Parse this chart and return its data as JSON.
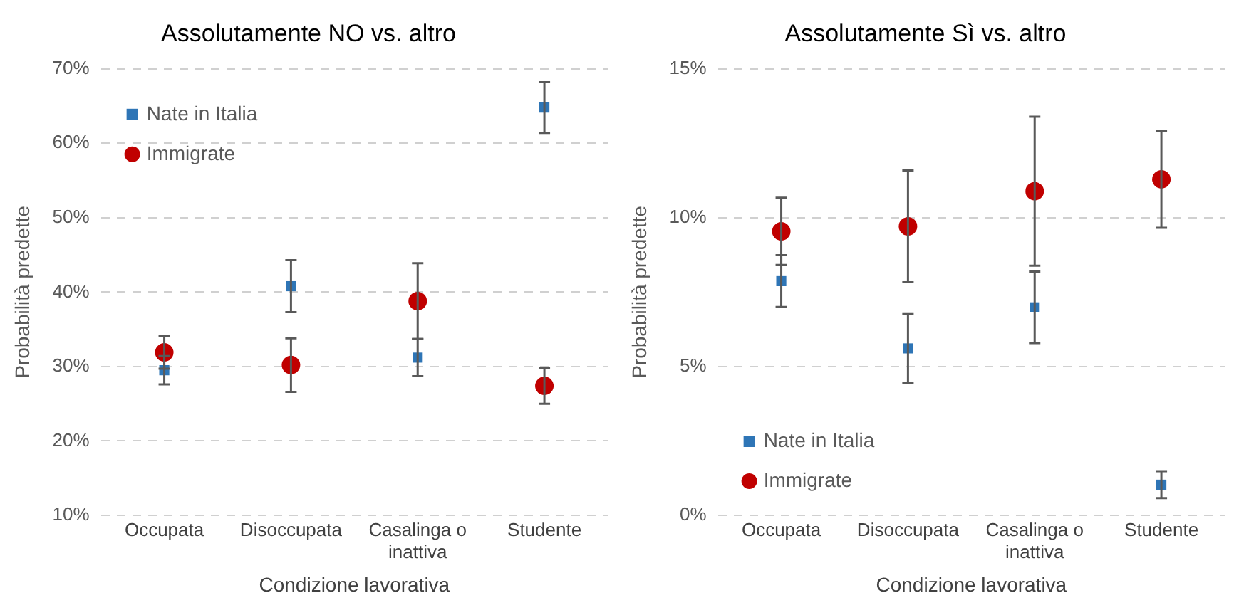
{
  "chart_data": [
    {
      "type": "scatter",
      "title": "Assolutamente NO vs. altro",
      "xlabel": "Condizione lavorativa",
      "ylabel": "Probabilità predette",
      "categories": [
        "Occupata",
        "Disoccupata",
        "Casalinga o inattiva",
        "Studente"
      ],
      "ylim": [
        10,
        70
      ],
      "yticks": [
        {
          "value": 10,
          "label": "10%"
        },
        {
          "value": 20,
          "label": "20%"
        },
        {
          "value": 30,
          "label": "30%"
        },
        {
          "value": 40,
          "label": "40%"
        },
        {
          "value": 50,
          "label": "50%"
        },
        {
          "value": 60,
          "label": "60%"
        },
        {
          "value": 70,
          "label": "70%"
        }
      ],
      "grid": "y",
      "legend": "top left",
      "series": [
        {
          "name": "Nate in Italia",
          "color": "#2e75b6",
          "marker": "square",
          "values": [
            29.5,
            40.8,
            31.2,
            64.8
          ],
          "errors": [
            1.9,
            3.5,
            2.5,
            3.4
          ]
        },
        {
          "name": "Immigrate",
          "color": "#c00000",
          "marker": "circle",
          "values": [
            31.9,
            30.2,
            38.8,
            27.4
          ],
          "errors": [
            2.2,
            3.6,
            5.1,
            2.4
          ]
        }
      ]
    },
    {
      "type": "scatter",
      "title": "Assolutamente Sì vs. altro",
      "xlabel": "Condizione lavorativa",
      "ylabel": "Probabilità predette",
      "categories": [
        "Occupata",
        "Disoccupata",
        "Casalinga o inattiva",
        "Studente"
      ],
      "ylim": [
        0,
        15
      ],
      "yticks": [
        {
          "value": 0,
          "label": "0%"
        },
        {
          "value": 5,
          "label": "5%"
        },
        {
          "value": 10,
          "label": "10%"
        },
        {
          "value": 15,
          "label": "15%"
        }
      ],
      "grid": "y",
      "legend": "bottom left",
      "series": [
        {
          "name": "Nate in Italia",
          "color": "#2e75b6",
          "marker": "square",
          "values": [
            7.87,
            5.61,
            6.99,
            1.03
          ],
          "errors": [
            0.87,
            1.15,
            1.2,
            0.45
          ]
        },
        {
          "name": "Immigrate",
          "color": "#c00000",
          "marker": "circle",
          "values": [
            9.54,
            9.71,
            10.89,
            11.29
          ],
          "errors": [
            1.13,
            1.88,
            2.5,
            1.63
          ]
        }
      ]
    }
  ]
}
